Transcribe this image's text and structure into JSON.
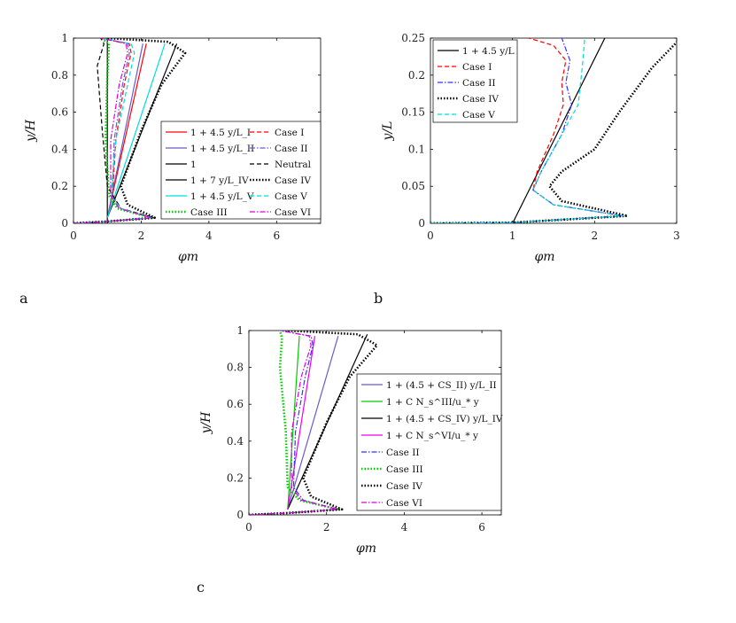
{
  "chart_data": [
    {
      "panel": "a",
      "type": "line",
      "xlabel": "φm",
      "ylabel": "y/H",
      "xlim": [
        0,
        7.3
      ],
      "ylim": [
        0,
        1
      ],
      "xticks": [
        "0",
        "2",
        "4",
        "6"
      ],
      "yticks": [
        "0",
        "0.2",
        "0.4",
        "0.6",
        "0.8",
        "1"
      ],
      "legend_placement": "bottom-right",
      "legend_columns": 2,
      "series": [
        {
          "name": "1 + 4.5 y/L_I",
          "color": "#ff0000",
          "style": "solid",
          "x": [
            1.0,
            2.15
          ],
          "y": [
            0.03,
            0.97
          ]
        },
        {
          "name": "1 + 4.5 y/L_II",
          "color": "#6a5acd",
          "style": "solid",
          "x": [
            1.0,
            2.05
          ],
          "y": [
            0.03,
            0.97
          ]
        },
        {
          "name": "1",
          "color": "#000000",
          "style": "solid",
          "x": [
            1.0,
            1.0
          ],
          "y": [
            0.0,
            1.0
          ]
        },
        {
          "name": "1 + 7 y/L_IV",
          "color": "#000000",
          "style": "solid",
          "x": [
            1.0,
            3.05
          ],
          "y": [
            0.03,
            0.97
          ]
        },
        {
          "name": "1 + 4.5 y/L_V",
          "color": "#00dddd",
          "style": "solid",
          "x": [
            1.0,
            2.7
          ],
          "y": [
            0.03,
            0.97
          ]
        },
        {
          "name": "Case III",
          "color": "#00cc00",
          "style": "dotted-thick",
          "x": [
            0.0,
            1.0,
            2.3,
            1.3,
            1.05,
            0.95,
            1.0,
            1.05,
            0.8
          ],
          "y": [
            0.0,
            0.01,
            0.03,
            0.08,
            0.15,
            0.45,
            0.8,
            0.97,
            1.0
          ]
        },
        {
          "name": "Case I",
          "color": "#ff0000",
          "style": "dashed",
          "x": [
            0.0,
            1.0,
            2.3,
            1.4,
            1.15,
            1.25,
            1.5,
            1.7,
            1.65,
            0.8
          ],
          "y": [
            0.0,
            0.01,
            0.03,
            0.08,
            0.15,
            0.45,
            0.75,
            0.92,
            0.97,
            1.0
          ]
        },
        {
          "name": "Case II",
          "color": "#6a5acd",
          "style": "dashdot",
          "x": [
            0.0,
            1.0,
            2.3,
            1.4,
            1.15,
            1.2,
            1.45,
            1.65,
            1.6,
            0.8
          ],
          "y": [
            0.0,
            0.01,
            0.03,
            0.08,
            0.15,
            0.45,
            0.75,
            0.92,
            0.97,
            1.0
          ]
        },
        {
          "name": "Neutral",
          "color": "#000000",
          "style": "dashed",
          "x": [
            0.0,
            1.0,
            2.4,
            1.4,
            1.0,
            0.85,
            0.7,
            0.9,
            0.8
          ],
          "y": [
            0.0,
            0.01,
            0.03,
            0.08,
            0.2,
            0.5,
            0.85,
            0.97,
            1.0
          ]
        },
        {
          "name": "Case IV",
          "color": "#000000",
          "style": "dotted-thick",
          "x": [
            0.0,
            1.0,
            2.4,
            1.6,
            1.4,
            2.0,
            2.6,
            3.3,
            2.8,
            1.0
          ],
          "y": [
            0.0,
            0.01,
            0.03,
            0.1,
            0.2,
            0.5,
            0.75,
            0.92,
            0.98,
            1.0
          ]
        },
        {
          "name": "Case V",
          "color": "#00dddd",
          "style": "dashed",
          "x": [
            0.0,
            1.0,
            2.3,
            1.4,
            1.1,
            1.25,
            1.6,
            1.8,
            1.7,
            0.8
          ],
          "y": [
            0.0,
            0.01,
            0.03,
            0.08,
            0.15,
            0.45,
            0.75,
            0.92,
            0.97,
            1.0
          ]
        },
        {
          "name": "Case VI",
          "color": "#dd00dd",
          "style": "dashdot",
          "x": [
            0.0,
            1.0,
            2.3,
            1.35,
            1.1,
            1.1,
            1.35,
            1.6,
            1.55,
            0.8
          ],
          "y": [
            0.0,
            0.01,
            0.03,
            0.08,
            0.15,
            0.45,
            0.75,
            0.92,
            0.97,
            1.0
          ]
        }
      ]
    },
    {
      "panel": "b",
      "type": "line",
      "xlabel": "φm",
      "ylabel": "y/L",
      "xlim": [
        0,
        3
      ],
      "ylim": [
        0,
        0.25
      ],
      "xticks": [
        "0",
        "1",
        "2",
        "3"
      ],
      "yticks": [
        "0",
        "0.05",
        "0.1",
        "0.15",
        "0.2",
        "0.25"
      ],
      "legend_placement": "top-left",
      "series": [
        {
          "name": "1 + 4.5 y/L",
          "color": "#000000",
          "style": "solid",
          "x": [
            1.0,
            2.125
          ],
          "y": [
            0.0,
            0.25
          ]
        },
        {
          "name": "Case I",
          "color": "#ff0000",
          "style": "dashed",
          "x": [
            0.0,
            1.0,
            2.35,
            1.5,
            1.25,
            1.3,
            1.5,
            1.62,
            1.6,
            1.65,
            1.5,
            1.2
          ],
          "y": [
            0.0,
            0.001,
            0.01,
            0.025,
            0.045,
            0.07,
            0.12,
            0.16,
            0.19,
            0.22,
            0.24,
            0.25
          ]
        },
        {
          "name": "Case II",
          "color": "#3333ff",
          "style": "dashdot",
          "x": [
            0.0,
            1.0,
            2.35,
            1.5,
            1.25,
            1.35,
            1.6,
            1.72,
            1.65,
            1.7,
            1.6
          ],
          "y": [
            0.0,
            0.001,
            0.01,
            0.025,
            0.045,
            0.07,
            0.12,
            0.16,
            0.19,
            0.22,
            0.25
          ]
        },
        {
          "name": "Case IV",
          "color": "#000000",
          "style": "dotted-thick",
          "x": [
            0.0,
            1.0,
            2.4,
            1.6,
            1.45,
            1.6,
            2.0,
            2.3,
            2.7,
            3.05
          ],
          "y": [
            0.0,
            0.001,
            0.01,
            0.03,
            0.05,
            0.07,
            0.1,
            0.15,
            0.21,
            0.25
          ]
        },
        {
          "name": "Case V",
          "color": "#00dddd",
          "style": "dashed",
          "x": [
            0.0,
            1.0,
            2.35,
            1.5,
            1.25,
            1.35,
            1.6,
            1.8,
            1.85,
            1.88
          ],
          "y": [
            0.0,
            0.001,
            0.01,
            0.025,
            0.045,
            0.07,
            0.12,
            0.16,
            0.21,
            0.25
          ]
        }
      ]
    },
    {
      "panel": "c",
      "type": "line",
      "xlabel": "φm",
      "ylabel": "y/H",
      "xlim": [
        0,
        6.5
      ],
      "ylim": [
        0,
        1
      ],
      "xticks": [
        "0",
        "2",
        "4",
        "6"
      ],
      "yticks": [
        "0",
        "0.2",
        "0.4",
        "0.6",
        "0.8",
        "1"
      ],
      "legend_placement": "bottom-right",
      "series": [
        {
          "name": "1 + (4.5 + CS_II) y/L_II",
          "color": "#6a5acd",
          "style": "solid",
          "x": [
            1.0,
            2.3
          ],
          "y": [
            0.03,
            0.97
          ]
        },
        {
          "name": "1 + C N_s^III/u_* y",
          "color": "#00cc00",
          "style": "solid",
          "x": [
            1.0,
            1.3
          ],
          "y": [
            0.03,
            0.97
          ]
        },
        {
          "name": "1 + (4.5 + CS_IV) y/L_IV",
          "color": "#000000",
          "style": "solid",
          "x": [
            1.0,
            3.05
          ],
          "y": [
            0.03,
            0.98
          ]
        },
        {
          "name": "1 + C N_s^VI/u_* y",
          "color": "#ee00ee",
          "style": "solid",
          "x": [
            1.0,
            1.7
          ],
          "y": [
            0.03,
            0.97
          ]
        },
        {
          "name": "Case II",
          "color": "#3333ff",
          "style": "dashdot",
          "x": [
            0.0,
            1.0,
            2.3,
            1.4,
            1.15,
            1.2,
            1.45,
            1.65,
            1.6,
            0.8
          ],
          "y": [
            0.0,
            0.01,
            0.03,
            0.08,
            0.15,
            0.45,
            0.75,
            0.92,
            0.97,
            1.0
          ]
        },
        {
          "name": "Case III",
          "color": "#00cc00",
          "style": "dotted-thick",
          "x": [
            0.0,
            1.0,
            2.3,
            1.3,
            1.0,
            0.95,
            0.8,
            0.85,
            0.8
          ],
          "y": [
            0.0,
            0.01,
            0.03,
            0.08,
            0.15,
            0.45,
            0.8,
            0.96,
            1.0
          ]
        },
        {
          "name": "Case IV",
          "color": "#000000",
          "style": "dotted-thick",
          "x": [
            0.0,
            1.0,
            2.4,
            1.6,
            1.4,
            2.0,
            2.6,
            3.3,
            2.8,
            1.0
          ],
          "y": [
            0.0,
            0.01,
            0.03,
            0.1,
            0.2,
            0.5,
            0.75,
            0.92,
            0.98,
            1.0
          ]
        },
        {
          "name": "Case VI",
          "color": "#dd00dd",
          "style": "dashdot",
          "x": [
            0.0,
            1.0,
            2.3,
            1.35,
            1.1,
            1.1,
            1.35,
            1.6,
            1.55,
            0.8
          ],
          "y": [
            0.0,
            0.01,
            0.03,
            0.08,
            0.15,
            0.45,
            0.75,
            0.92,
            0.97,
            1.0
          ]
        }
      ]
    }
  ]
}
